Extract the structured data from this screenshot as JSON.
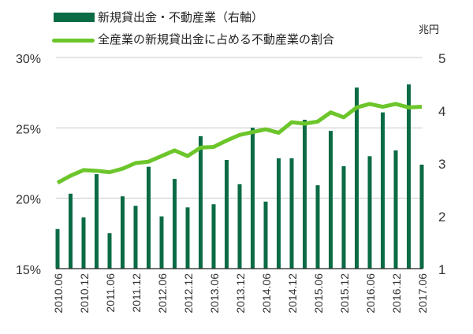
{
  "chart_data": {
    "type": "bar+line",
    "categories": [
      "2010.06",
      "2010.09",
      "2010.12",
      "2011.03",
      "2011.06",
      "2011.09",
      "2011.12",
      "2012.03",
      "2012.06",
      "2012.09",
      "2012.12",
      "2013.03",
      "2013.06",
      "2013.09",
      "2013.12",
      "2014.03",
      "2014.06",
      "2014.09",
      "2014.12",
      "2015.03",
      "2015.06",
      "2015.09",
      "2015.12",
      "2016.03",
      "2016.06",
      "2016.09",
      "2016.12",
      "2017.03",
      "2017.06"
    ],
    "tick_labels": [
      "2010.06",
      "2010.12",
      "2011.06",
      "2011.12",
      "2012.06",
      "2012.12",
      "2013.06",
      "2013.12",
      "2014.06",
      "2014.12",
      "2015.06",
      "2015.12",
      "2016.06",
      "2016.12",
      "2017.06"
    ],
    "series": [
      {
        "name": "新規貸出金・不動産業（右軸）",
        "type": "bar",
        "axis": "right",
        "color": "#0b6b45",
        "values": [
          1.75,
          2.42,
          1.97,
          2.79,
          1.67,
          2.37,
          2.19,
          2.93,
          1.99,
          2.7,
          2.16,
          3.51,
          2.22,
          3.06,
          2.6,
          3.67,
          2.27,
          3.09,
          3.09,
          3.82,
          2.58,
          3.61,
          2.94,
          4.43,
          3.13,
          3.96,
          3.24,
          4.49,
          2.97
        ]
      },
      {
        "name": "全産業の新規貸出金に占める不動産業の割合",
        "type": "line",
        "axis": "left",
        "color": "#6cc62b",
        "values": [
          21.1,
          21.6,
          22.0,
          21.95,
          21.85,
          22.1,
          22.5,
          22.6,
          23.0,
          23.4,
          23.0,
          23.6,
          23.65,
          24.1,
          24.5,
          24.7,
          24.9,
          24.65,
          25.4,
          25.3,
          25.45,
          26.1,
          25.75,
          26.45,
          26.7,
          26.5,
          26.7,
          26.45,
          26.5
        ]
      }
    ],
    "left_axis": {
      "ylim": [
        15,
        30
      ],
      "ticks": [
        "15%",
        "20%",
        "25%",
        "30%"
      ]
    },
    "right_axis": {
      "unit": "兆円",
      "ylim": [
        1,
        5
      ],
      "ticks": [
        "1",
        "2",
        "3",
        "4",
        "5"
      ]
    },
    "grid": true,
    "legend": "top"
  }
}
